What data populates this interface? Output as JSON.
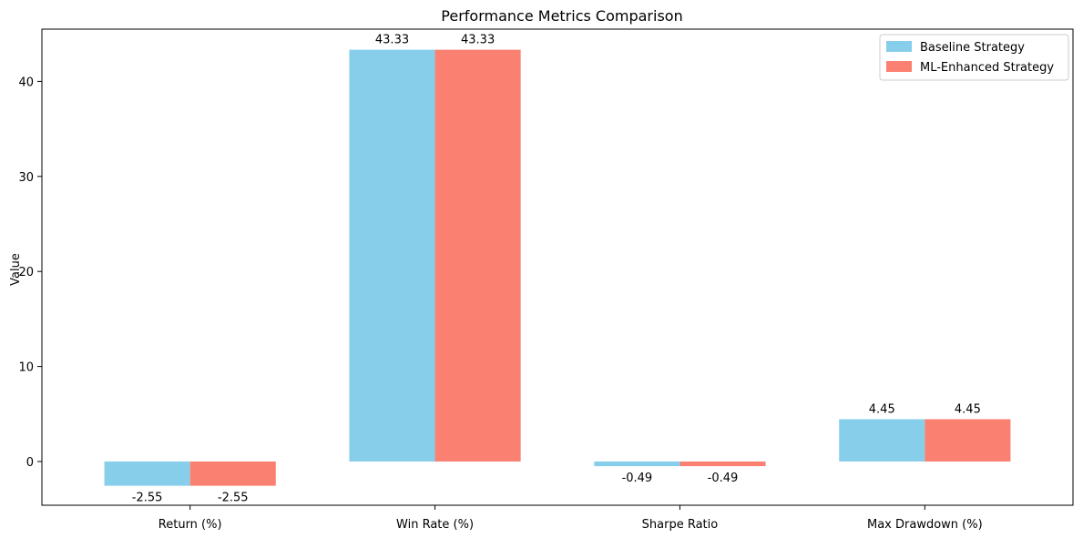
{
  "chart_data": {
    "type": "bar",
    "title": "Performance Metrics Comparison",
    "xlabel": "",
    "ylabel": "Value",
    "categories": [
      "Return (%)",
      "Win Rate (%)",
      "Sharpe Ratio",
      "Max Drawdown (%)"
    ],
    "series": [
      {
        "name": "Baseline Strategy",
        "color": "#87CEEB",
        "values": [
          -2.55,
          43.33,
          -0.49,
          4.45
        ]
      },
      {
        "name": "ML-Enhanced Strategy",
        "color": "#FA8072",
        "values": [
          -2.55,
          43.33,
          -0.49,
          4.45
        ]
      }
    ],
    "ylim": [
      -4.6,
      45.5
    ],
    "yticks": [
      0,
      10,
      20,
      30,
      40
    ],
    "grid": false,
    "legend_position": "top-right"
  }
}
